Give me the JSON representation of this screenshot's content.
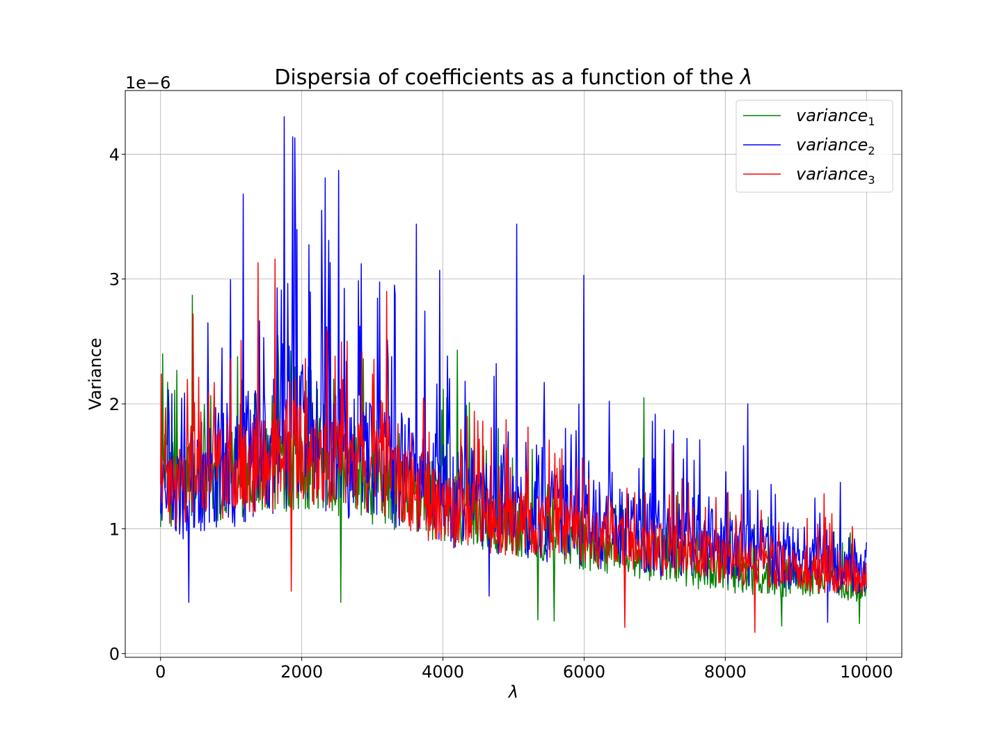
{
  "chart_data": {
    "type": "line",
    "title_text": "Dispersia of coefficients as a function of the ",
    "title_symbol": "λ",
    "xlabel": "λ",
    "ylabel": "Variance",
    "y_offset_text": "1e−6",
    "xlim": [
      -500,
      10500
    ],
    "ylim": [
      -0.03,
      4.51
    ],
    "x_ticks": [
      0,
      2000,
      4000,
      6000,
      8000,
      10000
    ],
    "x_tick_labels": [
      "0",
      "2000",
      "4000",
      "6000",
      "8000",
      "10000"
    ],
    "y_ticks": [
      0,
      1,
      2,
      3,
      4
    ],
    "y_tick_labels": [
      "0",
      "1",
      "2",
      "3",
      "4"
    ],
    "grid": true,
    "legend_position": "top-right",
    "x_range": [
      0,
      10000
    ],
    "samples": 1000,
    "series": [
      {
        "name": "variance",
        "subscript": "1",
        "color": "#008000",
        "trend": [
          [
            0,
            1.35
          ],
          [
            2000,
            1.55
          ],
          [
            4000,
            1.2
          ],
          [
            6000,
            0.9
          ],
          [
            8000,
            0.65
          ],
          [
            10000,
            0.55
          ]
        ],
        "spread": 0.45,
        "peaks": [
          [
            30,
            2.4
          ],
          [
            450,
            2.87
          ],
          [
            4200,
            2.43
          ],
          [
            6850,
            2.05
          ]
        ],
        "dips": [
          [
            2550,
            0.41
          ],
          [
            5350,
            0.27
          ],
          [
            5580,
            0.26
          ],
          [
            8800,
            0.22
          ],
          [
            9900,
            0.24
          ]
        ]
      },
      {
        "name": "variance",
        "subscript": "2",
        "color": "#0000ff",
        "trend": [
          [
            0,
            1.3
          ],
          [
            2000,
            1.75
          ],
          [
            3000,
            1.55
          ],
          [
            4000,
            1.3
          ],
          [
            6000,
            1.05
          ],
          [
            8000,
            0.85
          ],
          [
            10000,
            0.7
          ]
        ],
        "spread": 0.6,
        "peaks": [
          [
            1170,
            3.68
          ],
          [
            1750,
            4.3
          ],
          [
            1870,
            4.14
          ],
          [
            1900,
            4.13
          ],
          [
            2330,
            3.81
          ],
          [
            2520,
            3.87
          ],
          [
            2280,
            3.55
          ],
          [
            3620,
            3.44
          ],
          [
            5050,
            3.44
          ],
          [
            6000,
            3.03
          ],
          [
            3950,
            3.07
          ],
          [
            8320,
            2.0
          ]
        ],
        "dips": [
          [
            400,
            0.41
          ],
          [
            4650,
            0.46
          ],
          [
            9450,
            0.25
          ]
        ]
      },
      {
        "name": "variance",
        "subscript": "3",
        "color": "#ff0000",
        "trend": [
          [
            0,
            1.3
          ],
          [
            2000,
            1.6
          ],
          [
            3000,
            1.45
          ],
          [
            4000,
            1.15
          ],
          [
            6000,
            0.95
          ],
          [
            8000,
            0.75
          ],
          [
            10000,
            0.6
          ]
        ],
        "spread": 0.45,
        "peaks": [
          [
            460,
            2.72
          ],
          [
            1380,
            3.13
          ],
          [
            1620,
            3.16
          ],
          [
            3200,
            2.9
          ],
          [
            7250,
            1.68
          ],
          [
            9400,
            1.28
          ]
        ],
        "dips": [
          [
            1850,
            0.5
          ],
          [
            6580,
            0.21
          ],
          [
            8420,
            0.17
          ]
        ]
      }
    ]
  }
}
